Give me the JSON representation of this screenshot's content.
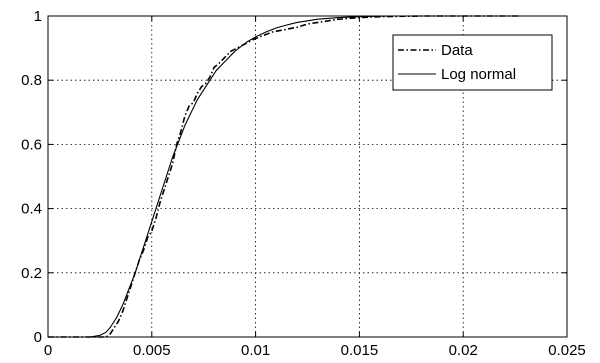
{
  "chart_data": {
    "type": "line",
    "title": "",
    "xlabel": "",
    "ylabel": "",
    "xlim": [
      0,
      0.025
    ],
    "ylim": [
      0,
      1
    ],
    "xticks": [
      0,
      0.005,
      0.01,
      0.015,
      0.02,
      0.025
    ],
    "xtick_labels": [
      "0",
      "0.005",
      "0.01",
      "0.015",
      "0.02",
      "0.025"
    ],
    "yticks": [
      0,
      0.2,
      0.4,
      0.6,
      0.8,
      1
    ],
    "ytick_labels": [
      "0",
      "0.2",
      "0.4",
      "0.6",
      "0.8",
      "1"
    ],
    "grid": true,
    "legend_position": "top-right",
    "series": [
      {
        "name": "Data",
        "style": "dash-dot",
        "color": "#000000",
        "x": [
          0,
          0.0028,
          0.003,
          0.0032,
          0.0034,
          0.0036,
          0.0038,
          0.004,
          0.0042,
          0.0044,
          0.0046,
          0.0048,
          0.005,
          0.0052,
          0.0054,
          0.0056,
          0.0058,
          0.006,
          0.0062,
          0.0064,
          0.0066,
          0.0068,
          0.007,
          0.0072,
          0.0074,
          0.0076,
          0.0078,
          0.008,
          0.0082,
          0.0085,
          0.0088,
          0.0091,
          0.0094,
          0.0097,
          0.01,
          0.0104,
          0.0108,
          0.0112,
          0.0116,
          0.012,
          0.0125,
          0.013,
          0.0135,
          0.014,
          0.015,
          0.016,
          0.018,
          0.02,
          0.0227
        ],
        "y": [
          0,
          0,
          0.01,
          0.03,
          0.05,
          0.08,
          0.12,
          0.16,
          0.2,
          0.24,
          0.27,
          0.31,
          0.33,
          0.37,
          0.42,
          0.46,
          0.5,
          0.54,
          0.6,
          0.64,
          0.69,
          0.72,
          0.73,
          0.76,
          0.78,
          0.79,
          0.81,
          0.84,
          0.85,
          0.87,
          0.89,
          0.9,
          0.91,
          0.92,
          0.93,
          0.94,
          0.95,
          0.955,
          0.96,
          0.965,
          0.975,
          0.98,
          0.985,
          0.99,
          0.995,
          0.998,
          1.0,
          1.0,
          1.0
        ]
      },
      {
        "name": "Log normal",
        "style": "solid",
        "color": "#000000",
        "x": [
          0,
          0.002,
          0.0025,
          0.0028,
          0.003,
          0.0033,
          0.0036,
          0.0039,
          0.0042,
          0.0045,
          0.0048,
          0.0051,
          0.0054,
          0.0057,
          0.006,
          0.0063,
          0.0066,
          0.0069,
          0.0072,
          0.0075,
          0.0078,
          0.0081,
          0.0084,
          0.0087,
          0.009,
          0.0093,
          0.0096,
          0.01,
          0.0105,
          0.011,
          0.0115,
          0.012,
          0.013,
          0.014,
          0.015,
          0.0165
        ],
        "y": [
          0,
          0,
          0.005,
          0.015,
          0.03,
          0.06,
          0.1,
          0.15,
          0.2,
          0.26,
          0.32,
          0.38,
          0.44,
          0.5,
          0.56,
          0.61,
          0.66,
          0.7,
          0.74,
          0.77,
          0.8,
          0.83,
          0.85,
          0.87,
          0.89,
          0.905,
          0.92,
          0.935,
          0.95,
          0.963,
          0.972,
          0.98,
          0.99,
          0.995,
          0.998,
          1.0
        ]
      }
    ]
  }
}
